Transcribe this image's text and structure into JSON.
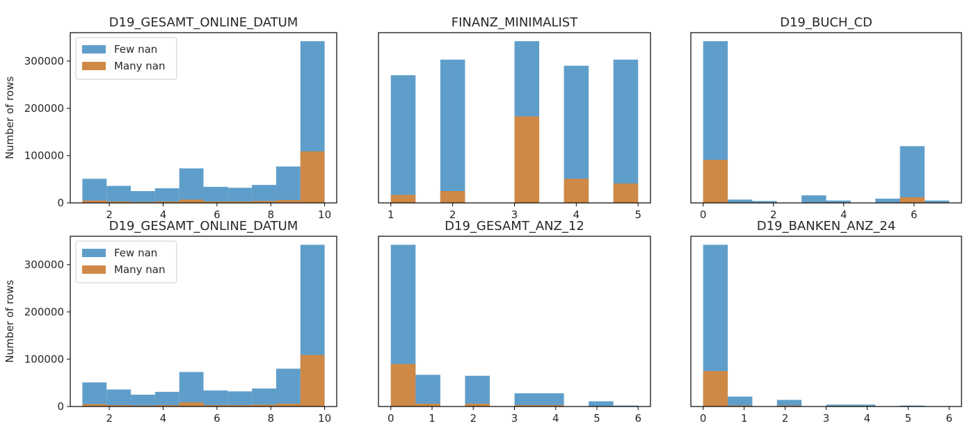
{
  "colors": {
    "few": "#5f9ecb",
    "many": "#cf8946",
    "axis": "#000000"
  },
  "legend": {
    "few": "Few nan",
    "many": "Many nan"
  },
  "ylabel": "Number of rows",
  "chart_data": [
    {
      "type": "bar",
      "title": "D19_GESAMT_ONLINE_DATUM",
      "stacking": "overlay",
      "xlim": [
        0.55,
        10.45
      ],
      "ylim": [
        0,
        360000
      ],
      "xticks": [
        2,
        4,
        6,
        8,
        10
      ],
      "yticks": [
        0,
        100000,
        200000,
        300000
      ],
      "show_yaxis": true,
      "legend": "top-left",
      "bins": [
        [
          1,
          1.9
        ],
        [
          1.9,
          2.8
        ],
        [
          2.8,
          3.7
        ],
        [
          3.7,
          4.6
        ],
        [
          4.6,
          5.5
        ],
        [
          5.5,
          6.4
        ],
        [
          6.4,
          7.3
        ],
        [
          7.3,
          8.2
        ],
        [
          8.2,
          9.1
        ],
        [
          9.1,
          10
        ]
      ],
      "series": [
        {
          "name": "Few nan",
          "values": [
            51000,
            36000,
            25000,
            31000,
            73000,
            34000,
            32000,
            38000,
            77000,
            342000
          ]
        },
        {
          "name": "Many nan",
          "values": [
            5000,
            3000,
            2000,
            3000,
            7000,
            3000,
            3000,
            4000,
            6000,
            109000
          ]
        }
      ]
    },
    {
      "type": "bar",
      "title": "FINANZ_MINIMALIST",
      "stacking": "overlay",
      "xlim": [
        0.8,
        5.2
      ],
      "ylim": [
        0,
        360000
      ],
      "xticks": [
        1,
        2,
        3,
        4,
        5
      ],
      "yticks": [],
      "show_yaxis": false,
      "legend": "",
      "bins": [
        [
          1,
          1.4
        ],
        [
          1.8,
          2.2
        ],
        [
          3,
          3.4
        ],
        [
          3.8,
          4.2
        ],
        [
          4.6,
          5
        ]
      ],
      "series": [
        {
          "name": "Few nan",
          "values": [
            270000,
            303000,
            342000,
            290000,
            303000
          ]
        },
        {
          "name": "Many nan",
          "values": [
            17000,
            25000,
            183000,
            51000,
            41000
          ]
        }
      ]
    },
    {
      "type": "bar",
      "title": "D19_BUCH_CD",
      "stacking": "overlay",
      "xlim": [
        -0.35,
        7.35
      ],
      "ylim": [
        0,
        360000
      ],
      "xticks": [
        0,
        2,
        4,
        6
      ],
      "yticks": [],
      "show_yaxis": false,
      "legend": "",
      "bins": [
        [
          0,
          0.7
        ],
        [
          0.7,
          1.4
        ],
        [
          1.4,
          2.1
        ],
        [
          2.1,
          2.8
        ],
        [
          2.8,
          3.5
        ],
        [
          3.5,
          4.2
        ],
        [
          4.2,
          4.9
        ],
        [
          4.9,
          5.6
        ],
        [
          5.6,
          6.3
        ],
        [
          6.3,
          7
        ]
      ],
      "series": [
        {
          "name": "Few nan",
          "values": [
            342000,
            7000,
            4000,
            0,
            16000,
            5000,
            0,
            9000,
            120000,
            5000
          ]
        },
        {
          "name": "Many nan",
          "values": [
            91000,
            1000,
            1000,
            0,
            1000,
            1000,
            0,
            1000,
            12000,
            1000
          ]
        }
      ]
    },
    {
      "type": "bar",
      "title": "D19_GESAMT_ONLINE_DATUM",
      "stacking": "overlay",
      "xlim": [
        0.55,
        10.45
      ],
      "ylim": [
        0,
        360000
      ],
      "xticks": [
        2,
        4,
        6,
        8,
        10
      ],
      "yticks": [
        0,
        100000,
        200000,
        300000
      ],
      "show_yaxis": true,
      "legend": "top-left",
      "bins": [
        [
          1,
          1.9
        ],
        [
          1.9,
          2.8
        ],
        [
          2.8,
          3.7
        ],
        [
          3.7,
          4.6
        ],
        [
          4.6,
          5.5
        ],
        [
          5.5,
          6.4
        ],
        [
          6.4,
          7.3
        ],
        [
          7.3,
          8.2
        ],
        [
          8.2,
          9.1
        ],
        [
          9.1,
          10
        ]
      ],
      "series": [
        {
          "name": "Few nan",
          "values": [
            51000,
            36000,
            25000,
            31000,
            73000,
            34000,
            32000,
            38000,
            80000,
            342000
          ]
        },
        {
          "name": "Many nan",
          "values": [
            5000,
            3000,
            2000,
            3000,
            9000,
            3000,
            3000,
            4000,
            6000,
            109000
          ]
        }
      ]
    },
    {
      "type": "bar",
      "title": "D19_GESAMT_ANZ_12",
      "stacking": "overlay",
      "xlim": [
        -0.3,
        6.3
      ],
      "ylim": [
        0,
        360000
      ],
      "xticks": [
        0,
        1,
        2,
        3,
        4,
        5,
        6
      ],
      "yticks": [],
      "show_yaxis": false,
      "legend": "",
      "bins": [
        [
          0,
          0.6
        ],
        [
          0.6,
          1.2
        ],
        [
          1.2,
          1.8
        ],
        [
          1.8,
          2.4
        ],
        [
          2.4,
          3
        ],
        [
          3,
          3.6
        ],
        [
          3.6,
          4.2
        ],
        [
          4.2,
          4.8
        ],
        [
          4.8,
          5.4
        ],
        [
          5.4,
          6
        ]
      ],
      "series": [
        {
          "name": "Few nan",
          "values": [
            342000,
            67000,
            0,
            65000,
            0,
            28000,
            28000,
            0,
            11000,
            2000
          ]
        },
        {
          "name": "Many nan",
          "values": [
            90000,
            6000,
            0,
            6000,
            0,
            3000,
            3000,
            0,
            1000,
            0
          ]
        }
      ]
    },
    {
      "type": "bar",
      "title": "D19_BANKEN_ANZ_24",
      "stacking": "overlay",
      "xlim": [
        -0.3,
        6.3
      ],
      "ylim": [
        0,
        360000
      ],
      "xticks": [
        0,
        1,
        2,
        3,
        4,
        5,
        6
      ],
      "yticks": [],
      "show_yaxis": false,
      "legend": "",
      "bins": [
        [
          0,
          0.6
        ],
        [
          0.6,
          1.2
        ],
        [
          1.2,
          1.8
        ],
        [
          1.8,
          2.4
        ],
        [
          2.4,
          3
        ],
        [
          3,
          3.6
        ],
        [
          3.6,
          4.2
        ],
        [
          4.2,
          4.8
        ],
        [
          4.8,
          5.4
        ],
        [
          5.4,
          6
        ]
      ],
      "series": [
        {
          "name": "Few nan",
          "values": [
            342000,
            21000,
            0,
            14000,
            0,
            4000,
            4000,
            0,
            2000,
            0
          ]
        },
        {
          "name": "Many nan",
          "values": [
            75000,
            2000,
            0,
            2000,
            0,
            1000,
            1000,
            0,
            0,
            0
          ]
        }
      ]
    }
  ]
}
